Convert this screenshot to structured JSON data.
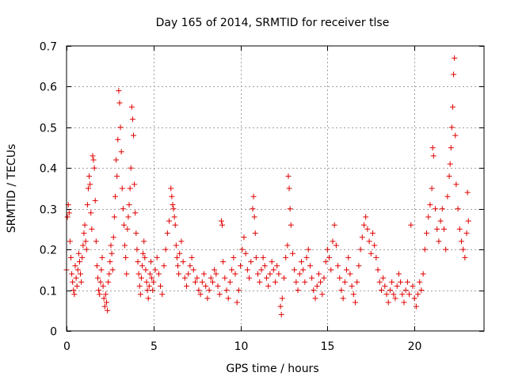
{
  "chart_data": {
    "type": "scatter",
    "title": "Day 165 of 2014, SRMTID for receiver tlse",
    "xlabel": "GPS time / hours",
    "ylabel": "SRMTID / TECUs",
    "xlim": [
      0,
      24
    ],
    "ylim": [
      0,
      0.7
    ],
    "x_ticks": [
      0,
      5,
      10,
      15,
      20
    ],
    "x_tick_labels": [
      "0",
      "5",
      "10",
      "15",
      "20"
    ],
    "y_ticks": [
      0,
      0.1,
      0.2,
      0.3,
      0.4,
      0.5,
      0.6,
      0.7
    ],
    "y_tick_labels": [
      "0",
      "0.1",
      "0.2",
      "0.3",
      "0.4",
      "0.5",
      "0.6",
      "0.7"
    ],
    "grid": true,
    "marker": "+",
    "color": "#e00000",
    "series": [
      {
        "name": "SRMTID",
        "points": [
          [
            0.0,
            0.15
          ],
          [
            0.05,
            0.28
          ],
          [
            0.1,
            0.31
          ],
          [
            0.15,
            0.29
          ],
          [
            0.2,
            0.22
          ],
          [
            0.25,
            0.18
          ],
          [
            0.3,
            0.14
          ],
          [
            0.35,
            0.12
          ],
          [
            0.4,
            0.1
          ],
          [
            0.45,
            0.09
          ],
          [
            0.5,
            0.16
          ],
          [
            0.55,
            0.13
          ],
          [
            0.6,
            0.11
          ],
          [
            0.65,
            0.15
          ],
          [
            0.7,
            0.19
          ],
          [
            0.75,
            0.17
          ],
          [
            0.8,
            0.14
          ],
          [
            0.85,
            0.12
          ],
          [
            0.9,
            0.18
          ],
          [
            0.95,
            0.21
          ],
          [
            1.0,
            0.24
          ],
          [
            1.05,
            0.26
          ],
          [
            1.1,
            0.22
          ],
          [
            1.15,
            0.2
          ],
          [
            1.2,
            0.31
          ],
          [
            1.25,
            0.35
          ],
          [
            1.3,
            0.38
          ],
          [
            1.35,
            0.36
          ],
          [
            1.4,
            0.29
          ],
          [
            1.45,
            0.25
          ],
          [
            1.5,
            0.43
          ],
          [
            1.55,
            0.42
          ],
          [
            1.6,
            0.4
          ],
          [
            1.65,
            0.32
          ],
          [
            1.7,
            0.22
          ],
          [
            1.75,
            0.16
          ],
          [
            1.8,
            0.13
          ],
          [
            1.85,
            0.1
          ],
          [
            1.9,
            0.09
          ],
          [
            1.95,
            0.12
          ],
          [
            2.0,
            0.15
          ],
          [
            2.05,
            0.18
          ],
          [
            2.1,
            0.11
          ],
          [
            2.15,
            0.08
          ],
          [
            2.2,
            0.06
          ],
          [
            2.25,
            0.09
          ],
          [
            2.3,
            0.07
          ],
          [
            2.35,
            0.05
          ],
          [
            2.4,
            0.12
          ],
          [
            2.45,
            0.14
          ],
          [
            2.5,
            0.17
          ],
          [
            2.55,
            0.21
          ],
          [
            2.6,
            0.19
          ],
          [
            2.65,
            0.15
          ],
          [
            2.7,
            0.23
          ],
          [
            2.75,
            0.28
          ],
          [
            2.8,
            0.33
          ],
          [
            2.85,
            0.42
          ],
          [
            2.9,
            0.38
          ],
          [
            2.95,
            0.47
          ],
          [
            3.0,
            0.59
          ],
          [
            3.05,
            0.56
          ],
          [
            3.1,
            0.5
          ],
          [
            3.15,
            0.44
          ],
          [
            3.2,
            0.35
          ],
          [
            3.25,
            0.3
          ],
          [
            3.3,
            0.26
          ],
          [
            3.35,
            0.21
          ],
          [
            3.4,
            0.18
          ],
          [
            3.45,
            0.14
          ],
          [
            3.5,
            0.25
          ],
          [
            3.55,
            0.28
          ],
          [
            3.6,
            0.31
          ],
          [
            3.65,
            0.35
          ],
          [
            3.7,
            0.4
          ],
          [
            3.75,
            0.55
          ],
          [
            3.8,
            0.52
          ],
          [
            3.85,
            0.48
          ],
          [
            3.9,
            0.36
          ],
          [
            3.95,
            0.29
          ],
          [
            4.0,
            0.24
          ],
          [
            4.05,
            0.2
          ],
          [
            4.1,
            0.17
          ],
          [
            4.15,
            0.14
          ],
          [
            4.2,
            0.11
          ],
          [
            4.25,
            0.09
          ],
          [
            4.3,
            0.13
          ],
          [
            4.35,
            0.16
          ],
          [
            4.4,
            0.19
          ],
          [
            4.45,
            0.22
          ],
          [
            4.5,
            0.18
          ],
          [
            4.55,
            0.15
          ],
          [
            4.6,
            0.12
          ],
          [
            4.65,
            0.1
          ],
          [
            4.7,
            0.08
          ],
          [
            4.75,
            0.11
          ],
          [
            4.8,
            0.14
          ],
          [
            4.85,
            0.17
          ],
          [
            4.9,
            0.13
          ],
          [
            4.95,
            0.1
          ],
          [
            5.0,
            0.12
          ],
          [
            5.1,
            0.15
          ],
          [
            5.2,
            0.18
          ],
          [
            5.3,
            0.14
          ],
          [
            5.4,
            0.11
          ],
          [
            5.5,
            0.09
          ],
          [
            5.6,
            0.16
          ],
          [
            5.7,
            0.2
          ],
          [
            5.8,
            0.24
          ],
          [
            5.9,
            0.27
          ],
          [
            6.0,
            0.35
          ],
          [
            6.05,
            0.33
          ],
          [
            6.1,
            0.31
          ],
          [
            6.15,
            0.3
          ],
          [
            6.2,
            0.28
          ],
          [
            6.25,
            0.26
          ],
          [
            6.3,
            0.21
          ],
          [
            6.35,
            0.18
          ],
          [
            6.4,
            0.16
          ],
          [
            6.45,
            0.14
          ],
          [
            6.5,
            0.19
          ],
          [
            6.6,
            0.22
          ],
          [
            6.7,
            0.17
          ],
          [
            6.8,
            0.13
          ],
          [
            6.9,
            0.11
          ],
          [
            7.0,
            0.14
          ],
          [
            7.1,
            0.16
          ],
          [
            7.2,
            0.18
          ],
          [
            7.3,
            0.15
          ],
          [
            7.4,
            0.12
          ],
          [
            7.5,
            0.13
          ],
          [
            7.6,
            0.1
          ],
          [
            7.7,
            0.09
          ],
          [
            7.8,
            0.12
          ],
          [
            7.9,
            0.14
          ],
          [
            8.0,
            0.11
          ],
          [
            8.1,
            0.08
          ],
          [
            8.2,
            0.1
          ],
          [
            8.3,
            0.13
          ],
          [
            8.4,
            0.12
          ],
          [
            8.5,
            0.15
          ],
          [
            8.6,
            0.14
          ],
          [
            8.7,
            0.11
          ],
          [
            8.8,
            0.09
          ],
          [
            8.9,
            0.27
          ],
          [
            8.95,
            0.26
          ],
          [
            9.0,
            0.17
          ],
          [
            9.1,
            0.13
          ],
          [
            9.2,
            0.1
          ],
          [
            9.3,
            0.08
          ],
          [
            9.4,
            0.12
          ],
          [
            9.5,
            0.15
          ],
          [
            9.6,
            0.18
          ],
          [
            9.7,
            0.14
          ],
          [
            9.8,
            0.07
          ],
          [
            9.9,
            0.1
          ],
          [
            10.0,
            0.16
          ],
          [
            10.1,
            0.2
          ],
          [
            10.2,
            0.23
          ],
          [
            10.3,
            0.19
          ],
          [
            10.4,
            0.15
          ],
          [
            10.5,
            0.13
          ],
          [
            10.6,
            0.17
          ],
          [
            10.7,
            0.3
          ],
          [
            10.75,
            0.33
          ],
          [
            10.8,
            0.28
          ],
          [
            10.85,
            0.24
          ],
          [
            10.9,
            0.18
          ],
          [
            11.0,
            0.14
          ],
          [
            11.1,
            0.12
          ],
          [
            11.2,
            0.15
          ],
          [
            11.3,
            0.18
          ],
          [
            11.4,
            0.16
          ],
          [
            11.5,
            0.13
          ],
          [
            11.6,
            0.11
          ],
          [
            11.7,
            0.14
          ],
          [
            11.8,
            0.17
          ],
          [
            11.9,
            0.15
          ],
          [
            12.0,
            0.12
          ],
          [
            12.1,
            0.16
          ],
          [
            12.2,
            0.14
          ],
          [
            12.3,
            0.06
          ],
          [
            12.35,
            0.04
          ],
          [
            12.4,
            0.08
          ],
          [
            12.5,
            0.13
          ],
          [
            12.6,
            0.18
          ],
          [
            12.7,
            0.21
          ],
          [
            12.75,
            0.38
          ],
          [
            12.8,
            0.35
          ],
          [
            12.85,
            0.3
          ],
          [
            12.9,
            0.26
          ],
          [
            13.0,
            0.19
          ],
          [
            13.1,
            0.15
          ],
          [
            13.2,
            0.12
          ],
          [
            13.3,
            0.1
          ],
          [
            13.4,
            0.14
          ],
          [
            13.5,
            0.17
          ],
          [
            13.6,
            0.15
          ],
          [
            13.7,
            0.12
          ],
          [
            13.8,
            0.18
          ],
          [
            13.9,
            0.2
          ],
          [
            14.0,
            0.16
          ],
          [
            14.1,
            0.13
          ],
          [
            14.2,
            0.1
          ],
          [
            14.3,
            0.08
          ],
          [
            14.4,
            0.11
          ],
          [
            14.5,
            0.14
          ],
          [
            14.6,
            0.12
          ],
          [
            14.7,
            0.09
          ],
          [
            14.8,
            0.13
          ],
          [
            14.9,
            0.17
          ],
          [
            15.0,
            0.2
          ],
          [
            15.1,
            0.18
          ],
          [
            15.2,
            0.15
          ],
          [
            15.3,
            0.22
          ],
          [
            15.4,
            0.26
          ],
          [
            15.5,
            0.21
          ],
          [
            15.6,
            0.16
          ],
          [
            15.7,
            0.13
          ],
          [
            15.8,
            0.1
          ],
          [
            15.9,
            0.08
          ],
          [
            16.0,
            0.12
          ],
          [
            16.1,
            0.15
          ],
          [
            16.2,
            0.18
          ],
          [
            16.3,
            0.14
          ],
          [
            16.4,
            0.11
          ],
          [
            16.5,
            0.09
          ],
          [
            16.6,
            0.07
          ],
          [
            16.7,
            0.12
          ],
          [
            16.8,
            0.16
          ],
          [
            16.9,
            0.2
          ],
          [
            17.0,
            0.23
          ],
          [
            17.1,
            0.26
          ],
          [
            17.2,
            0.28
          ],
          [
            17.3,
            0.25
          ],
          [
            17.4,
            0.22
          ],
          [
            17.5,
            0.19
          ],
          [
            17.6,
            0.24
          ],
          [
            17.7,
            0.21
          ],
          [
            17.8,
            0.18
          ],
          [
            17.9,
            0.15
          ],
          [
            18.0,
            0.12
          ],
          [
            18.1,
            0.1
          ],
          [
            18.2,
            0.13
          ],
          [
            18.3,
            0.11
          ],
          [
            18.4,
            0.09
          ],
          [
            18.5,
            0.07
          ],
          [
            18.6,
            0.1
          ],
          [
            18.7,
            0.12
          ],
          [
            18.8,
            0.09
          ],
          [
            18.9,
            0.08
          ],
          [
            19.0,
            0.11
          ],
          [
            19.1,
            0.14
          ],
          [
            19.2,
            0.12
          ],
          [
            19.3,
            0.09
          ],
          [
            19.4,
            0.07
          ],
          [
            19.5,
            0.1
          ],
          [
            19.6,
            0.12
          ],
          [
            19.7,
            0.09
          ],
          [
            19.8,
            0.26
          ],
          [
            19.9,
            0.11
          ],
          [
            20.0,
            0.08
          ],
          [
            20.1,
            0.06
          ],
          [
            20.2,
            0.09
          ],
          [
            20.3,
            0.12
          ],
          [
            20.4,
            0.1
          ],
          [
            20.5,
            0.14
          ],
          [
            20.6,
            0.2
          ],
          [
            20.7,
            0.24
          ],
          [
            20.8,
            0.28
          ],
          [
            20.9,
            0.31
          ],
          [
            21.0,
            0.35
          ],
          [
            21.05,
            0.45
          ],
          [
            21.1,
            0.43
          ],
          [
            21.2,
            0.3
          ],
          [
            21.3,
            0.25
          ],
          [
            21.4,
            0.22
          ],
          [
            21.5,
            0.27
          ],
          [
            21.6,
            0.3
          ],
          [
            21.7,
            0.25
          ],
          [
            21.8,
            0.2
          ],
          [
            21.9,
            0.33
          ],
          [
            22.0,
            0.38
          ],
          [
            22.05,
            0.41
          ],
          [
            22.1,
            0.45
          ],
          [
            22.15,
            0.5
          ],
          [
            22.2,
            0.55
          ],
          [
            22.25,
            0.63
          ],
          [
            22.3,
            0.67
          ],
          [
            22.35,
            0.48
          ],
          [
            22.4,
            0.36
          ],
          [
            22.5,
            0.3
          ],
          [
            22.6,
            0.25
          ],
          [
            22.7,
            0.22
          ],
          [
            22.8,
            0.2
          ],
          [
            22.9,
            0.18
          ],
          [
            23.0,
            0.24
          ],
          [
            23.05,
            0.34
          ],
          [
            23.1,
            0.27
          ]
        ]
      }
    ]
  }
}
